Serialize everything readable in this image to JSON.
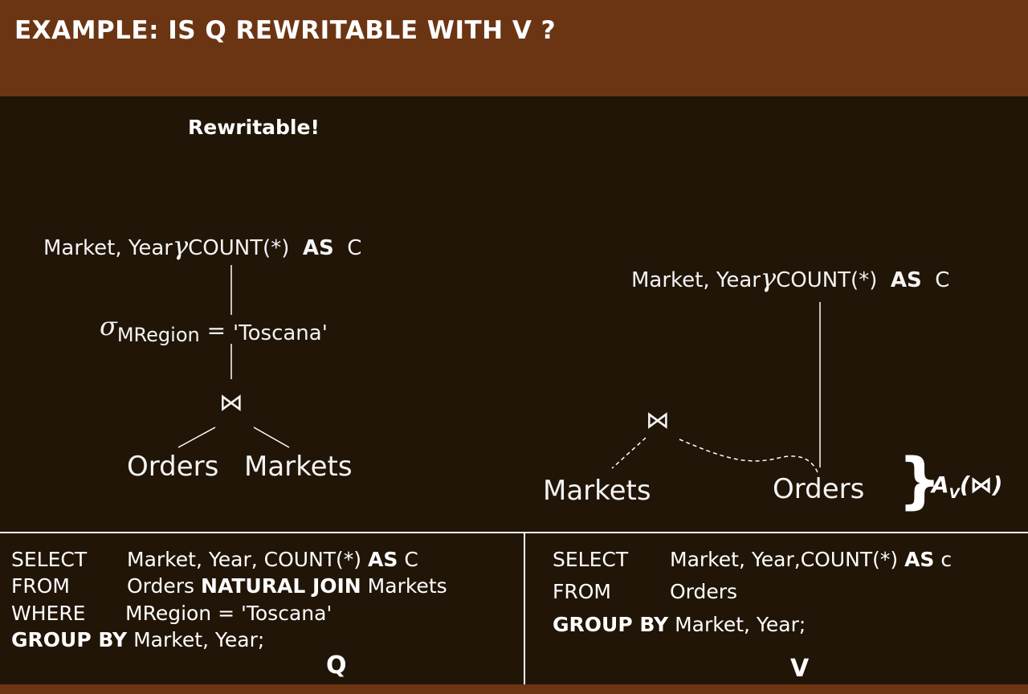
{
  "slide": {
    "title": "EXAMPLE: IS Q REWRITABLE WITH V ?",
    "verdict": "Rewritable!"
  },
  "left_tree": {
    "gamma_prefix": "Market, Year",
    "gamma_symbol": "γ",
    "gamma_agg": "COUNT(*)",
    "gamma_as": "AS",
    "gamma_alias": "C",
    "sigma_symbol": "σ",
    "sigma_cond": "MRegion",
    "sigma_eq": "=",
    "sigma_value": "'Toscana'",
    "join_symbol": "⋈",
    "leaf_left": "Orders",
    "leaf_right": "Markets"
  },
  "right_tree": {
    "gamma_prefix": "Market, Year",
    "gamma_symbol": "γ",
    "gamma_agg": "COUNT(*)",
    "gamma_as": "AS",
    "gamma_alias": "C",
    "join_symbol": "⋈",
    "leaf_left": "Markets",
    "leaf_right": "Orders",
    "brace": "}",
    "annotation_a": "A",
    "annotation_sub": "V",
    "annotation_open": "(",
    "annotation_join": "⋈",
    "annotation_close": ")"
  },
  "query_q": {
    "select_kw": "SELECT",
    "select_val_1": "Market, Year, COUNT(*) ",
    "select_as": "AS",
    "select_alias": " C",
    "from_kw": "FROM",
    "from_table_1": "Orders ",
    "from_join": "NATURAL JOIN",
    "from_table_2": " Markets",
    "where_kw": "WHERE",
    "where_val": "MRegion = 'Toscana'",
    "group_kw": "GROUP BY",
    "group_val": " Market, Year;",
    "label": "Q"
  },
  "query_v": {
    "select_kw": "SELECT",
    "select_val_1": "Market, Year,COUNT(*) ",
    "select_as": "AS",
    "select_alias": " c",
    "from_kw": "FROM",
    "from_val": "Orders",
    "group_kw": "GROUP BY",
    "group_val": " Market, Year;",
    "label": "V"
  }
}
